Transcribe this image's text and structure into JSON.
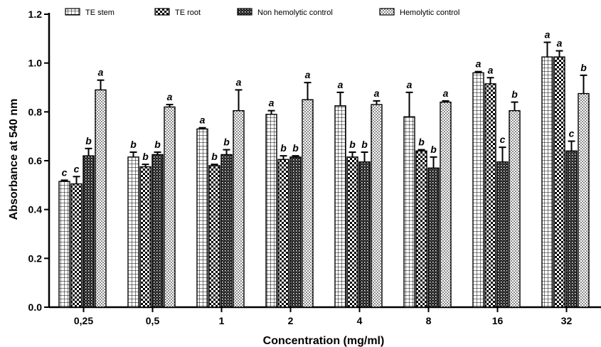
{
  "chart_data": {
    "type": "bar",
    "xlabel": "Concentration (mg/ml)",
    "ylabel": "Absorbance at 540 nm",
    "ylim": [
      0,
      1.2
    ],
    "yticks": [
      "0.0",
      "0.2",
      "0.4",
      "0.6",
      "0.8",
      "1.0",
      "1.2"
    ],
    "categories": [
      "0,25",
      "0,5",
      "1",
      "2",
      "4",
      "8",
      "16",
      "32"
    ],
    "legend_position": "top",
    "series": [
      {
        "name": "TE stem",
        "pattern": "grid",
        "values": [
          0.515,
          0.615,
          0.73,
          0.79,
          0.825,
          0.78,
          0.96,
          1.025
        ],
        "errors": [
          0.005,
          0.02,
          0.005,
          0.015,
          0.055,
          0.1,
          0.005,
          0.06
        ],
        "labels": [
          "c",
          "b",
          "a",
          "a",
          "a",
          "a",
          "a",
          "a"
        ]
      },
      {
        "name": "TE root",
        "pattern": "checker",
        "values": [
          0.505,
          0.575,
          0.58,
          0.605,
          0.615,
          0.64,
          0.915,
          1.025
        ],
        "errors": [
          0.03,
          0.01,
          0.005,
          0.015,
          0.02,
          0.005,
          0.025,
          0.025
        ],
        "labels": [
          "c",
          "b",
          "b",
          "b",
          "b",
          "b",
          "a",
          "a"
        ]
      },
      {
        "name": "Non hemolytic control",
        "pattern": "dense",
        "values": [
          0.62,
          0.625,
          0.625,
          0.615,
          0.595,
          0.57,
          0.595,
          0.64
        ],
        "errors": [
          0.03,
          0.01,
          0.02,
          0.005,
          0.04,
          0.045,
          0.06,
          0.04
        ],
        "labels": [
          "b",
          "b",
          "b",
          "b",
          "b",
          "b",
          "c",
          "c"
        ]
      },
      {
        "name": "Hemolytic control",
        "pattern": "dots",
        "values": [
          0.89,
          0.82,
          0.805,
          0.85,
          0.83,
          0.84,
          0.805,
          0.875
        ],
        "errors": [
          0.04,
          0.01,
          0.085,
          0.07,
          0.015,
          0.005,
          0.035,
          0.075
        ],
        "labels": [
          "a",
          "a",
          "a",
          "a",
          "a",
          "a",
          "b",
          "b"
        ]
      }
    ]
  }
}
